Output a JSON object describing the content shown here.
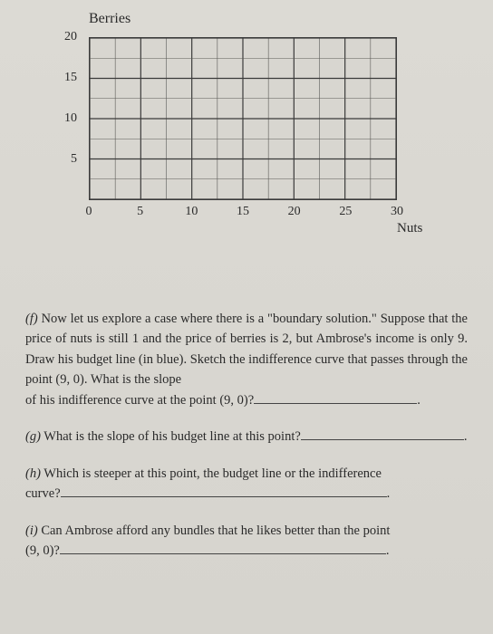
{
  "chart": {
    "type": "grid",
    "y_axis_title": "Berries",
    "x_axis_title": "Nuts",
    "xlim": [
      0,
      30
    ],
    "ylim": [
      0,
      20
    ],
    "x_ticks": [
      0,
      5,
      10,
      15,
      20,
      25,
      30
    ],
    "y_ticks": [
      5,
      10,
      15,
      20
    ],
    "minor_step_x": 2.5,
    "minor_step_y": 2.5,
    "grid_color_major": "#3a3a3a",
    "grid_color_minor": "#5a5a56",
    "background_color": "#d8d6d0",
    "border_color": "#3a3a3a",
    "tick_fontsize": 14,
    "title_fontsize": 16
  },
  "questions": {
    "f": {
      "label": "(f)",
      "part1": "Now let us explore a case where there is a \"boundary solution.\" Suppose that the price of nuts is still 1 and the price of berries is 2, but Ambrose's income is only 9. Draw his budget line (in blue). Sketch the indifference curve that passes through the point (9, 0). What is the slope",
      "part2": "of his indifference curve at the point (9, 0)?"
    },
    "g": {
      "label": "(g)",
      "text": "What is the slope of his budget line at this point?"
    },
    "h": {
      "label": "(h)",
      "part1": "Which is steeper at this point, the budget line or the indifference",
      "part2": "curve?"
    },
    "i": {
      "label": "(i)",
      "part1": "Can Ambrose afford any bundles that he likes better than the point",
      "part2": "(9, 0)?"
    }
  }
}
